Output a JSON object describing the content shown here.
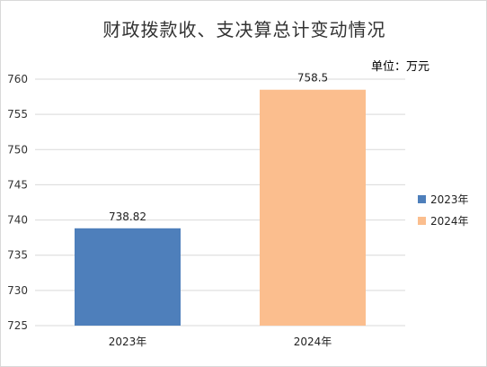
{
  "chart_data": {
    "type": "bar",
    "title": "财政拨款收、支决算总计变动情况",
    "unit_label": "单位：万元",
    "categories": [
      "2023年",
      "2024年"
    ],
    "values": [
      738.82,
      758.5
    ],
    "value_labels": [
      "738.82",
      "758.5"
    ],
    "colors": [
      "#4e7fbb",
      "#fbbe8e"
    ],
    "ylim": [
      725,
      760
    ],
    "yticks": [
      725,
      730,
      735,
      740,
      745,
      750,
      755,
      760
    ],
    "grid": true,
    "legend": {
      "position": "right",
      "entries": [
        "2023年",
        "2024年"
      ]
    }
  }
}
